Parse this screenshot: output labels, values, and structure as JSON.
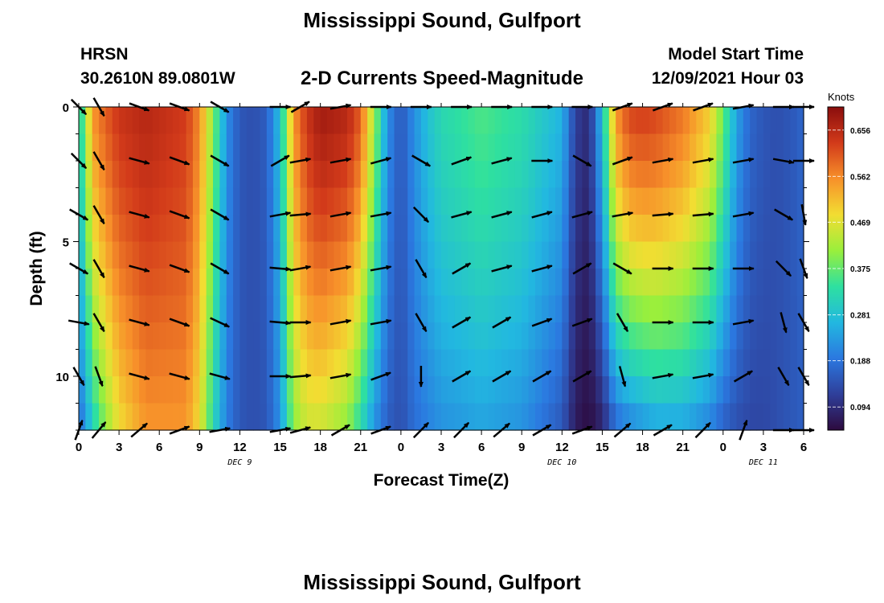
{
  "header": {
    "title": "Mississippi Sound, Gulfport",
    "station_code": "HRSN",
    "station_coords": "30.2610N  89.0801W",
    "subtitle": "2-D Currents Speed-Magnitude",
    "run_label": "Model Start Time",
    "run_value": "12/09/2021 Hour 03"
  },
  "footer": {
    "title": "Mississippi Sound, Gulfport"
  },
  "chart_data": {
    "type": "heatmap",
    "title": "2-D Currents Speed-Magnitude",
    "xlabel": "Forecast Time(Z)",
    "ylabel": "Depth (ft)",
    "colorbar_label": "Knots",
    "colorscale": [
      "#2d0a3e",
      "#2f3f9a",
      "#2b78e0",
      "#22b8e0",
      "#2ee0a0",
      "#9aef3c",
      "#f2dd32",
      "#f7902a",
      "#d23a1a",
      "#8a0d0d"
    ],
    "colorbar_range": [
      0.047,
      0.703
    ],
    "colorbar_ticks": [
      0.094,
      0.188,
      0.281,
      0.375,
      0.469,
      0.562,
      0.656
    ],
    "colorbar_tick_labels": [
      "0.094",
      "0.188",
      "0.281",
      "0.375",
      "0.469",
      "0.562",
      "0.656"
    ],
    "x_range_hours": [
      0,
      54
    ],
    "x_tick_hours": [
      0,
      3,
      6,
      9,
      12,
      15,
      18,
      21,
      24,
      27,
      30,
      33,
      36,
      39,
      42,
      45,
      48,
      51,
      54
    ],
    "x_tick_labels": [
      "0",
      "3",
      "6",
      "9",
      "12",
      "15",
      "18",
      "21",
      "0",
      "3",
      "6",
      "9",
      "12",
      "15",
      "18",
      "21",
      "0",
      "3",
      "6"
    ],
    "date_labels": [
      {
        "hour": 12,
        "text": "DEC 9"
      },
      {
        "hour": 36,
        "text": "DEC 10"
      },
      {
        "hour": 51,
        "text": "DEC 11"
      }
    ],
    "y_range_ft": [
      0,
      12
    ],
    "y_ticks": [
      0,
      5,
      10
    ],
    "y_tick_labels": [
      "0",
      "5",
      "10"
    ],
    "speed_profile": {
      "hours": [
        0,
        0.5,
        1,
        2,
        3,
        5,
        8,
        9,
        10,
        11,
        12,
        13,
        14,
        15,
        16,
        17,
        18,
        20,
        21,
        22,
        23,
        24,
        25,
        26,
        27,
        30,
        33,
        36,
        37,
        38,
        39,
        40,
        41,
        42,
        43,
        45,
        47,
        48,
        49,
        50,
        51,
        52,
        53,
        54
      ],
      "surface": [
        0.3,
        0.4,
        0.55,
        0.6,
        0.64,
        0.66,
        0.63,
        0.56,
        0.4,
        0.22,
        0.15,
        0.14,
        0.16,
        0.28,
        0.55,
        0.64,
        0.68,
        0.66,
        0.6,
        0.42,
        0.22,
        0.15,
        0.22,
        0.28,
        0.32,
        0.36,
        0.33,
        0.26,
        0.12,
        0.09,
        0.28,
        0.55,
        0.62,
        0.63,
        0.62,
        0.58,
        0.5,
        0.38,
        0.24,
        0.17,
        0.15,
        0.14,
        0.15,
        0.17
      ],
      "bottom": [
        0.18,
        0.22,
        0.3,
        0.4,
        0.48,
        0.55,
        0.55,
        0.48,
        0.32,
        0.2,
        0.15,
        0.14,
        0.15,
        0.22,
        0.4,
        0.45,
        0.45,
        0.4,
        0.32,
        0.22,
        0.16,
        0.14,
        0.18,
        0.2,
        0.22,
        0.24,
        0.22,
        0.15,
        0.07,
        0.05,
        0.08,
        0.17,
        0.2,
        0.22,
        0.24,
        0.24,
        0.2,
        0.16,
        0.14,
        0.13,
        0.13,
        0.14,
        0.15,
        0.16
      ]
    },
    "vector_hours": [
      0,
      1.5,
      4.5,
      7.5,
      10.5,
      15,
      16.5,
      19.5,
      22.5,
      25.5,
      28.5,
      31.5,
      34.5,
      37.5,
      40.5,
      43.5,
      46.5,
      49.5,
      52.5,
      54
    ],
    "vector_depths_ft": [
      0,
      2,
      4,
      6,
      8,
      10,
      12
    ],
    "vector_angles_deg": [
      [
        -45,
        -60,
        -20,
        -20,
        -30,
        0,
        30,
        10,
        0,
        0,
        0,
        0,
        0,
        0,
        20,
        20,
        20,
        10,
        0,
        0
      ],
      [
        -45,
        -60,
        -15,
        -20,
        -30,
        30,
        10,
        10,
        15,
        -30,
        20,
        15,
        0,
        -30,
        20,
        10,
        10,
        10,
        -10,
        0
      ],
      [
        -30,
        -60,
        -15,
        -20,
        -30,
        10,
        5,
        10,
        10,
        -45,
        15,
        15,
        15,
        15,
        10,
        5,
        5,
        10,
        -30,
        -80
      ],
      [
        -30,
        -60,
        -15,
        -20,
        -30,
        -5,
        10,
        10,
        10,
        -60,
        30,
        15,
        15,
        30,
        -30,
        0,
        0,
        0,
        -45,
        -70
      ],
      [
        -10,
        -60,
        -15,
        -20,
        -25,
        -5,
        0,
        10,
        10,
        -60,
        30,
        30,
        20,
        20,
        -60,
        0,
        0,
        10,
        -75,
        -60
      ],
      [
        -60,
        -70,
        -15,
        -15,
        -15,
        0,
        5,
        10,
        20,
        -90,
        30,
        30,
        30,
        30,
        -75,
        10,
        10,
        30,
        -60,
        -60
      ],
      [
        70,
        50,
        40,
        20,
        10,
        10,
        15,
        30,
        20,
        45,
        45,
        40,
        30,
        20,
        40,
        30,
        45,
        70,
        0,
        0
      ]
    ]
  }
}
